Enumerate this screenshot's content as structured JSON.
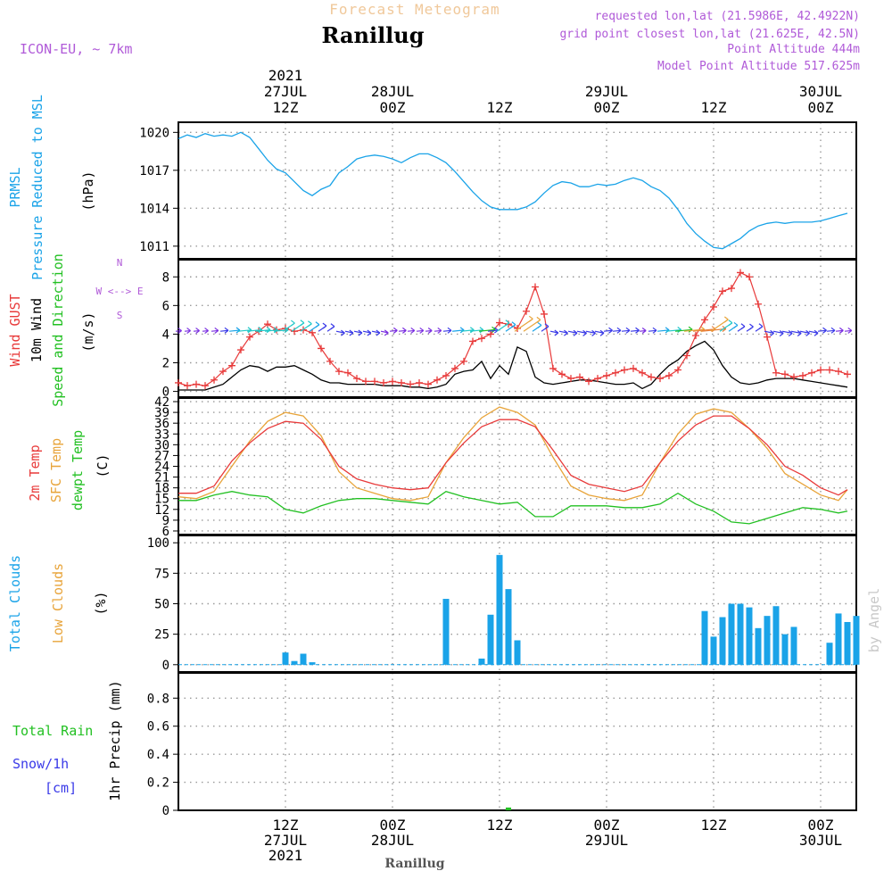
{
  "header": {
    "subtitle": "Forecast Meteogram",
    "location": "Ranillug",
    "model": "ICON-EU, ~ 7km",
    "requested": "requested lon,lat (21.5986E, 42.4922N)",
    "gridpoint": "grid point closest lon,lat (21.625E, 42.5N)",
    "point_alt": "Point Altitude 444m",
    "model_alt": "Model Point Altitude 517.625m",
    "footer_location": "Ranillug",
    "watermark": "by Angel"
  },
  "colors": {
    "pressure": "#1aa3e8",
    "gust": "#e83a3a",
    "wind": "#000000",
    "temp2m": "#e83a3a",
    "sfc": "#e8a43a",
    "dewpt": "#22c022",
    "clouds_total": "#1aa3e8",
    "clouds_low": "#e8a43a",
    "rain": "#22c022",
    "snow": "#3a3ae8",
    "accent_label": "#b05ad8"
  },
  "time_axis": {
    "top": [
      {
        "t": 12,
        "lines": [
          "2021",
          "27JUL",
          "12Z"
        ]
      },
      {
        "t": 24,
        "lines": [
          "28JUL",
          "00Z"
        ]
      },
      {
        "t": 36,
        "lines": [
          "12Z"
        ]
      },
      {
        "t": 48,
        "lines": [
          "29JUL",
          "00Z"
        ]
      },
      {
        "t": 60,
        "lines": [
          "12Z"
        ]
      },
      {
        "t": 72,
        "lines": [
          "30JUL",
          "00Z"
        ]
      }
    ],
    "bottom": [
      {
        "t": 12,
        "lines": [
          "12Z",
          "27JUL",
          "2021"
        ]
      },
      {
        "t": 24,
        "lines": [
          "00Z",
          "28JUL"
        ]
      },
      {
        "t": 36,
        "lines": [
          "12Z"
        ]
      },
      {
        "t": 48,
        "lines": [
          "00Z",
          "29JUL"
        ]
      },
      {
        "t": 60,
        "lines": [
          "12Z"
        ]
      },
      {
        "t": 72,
        "lines": [
          "00Z",
          "30JUL"
        ]
      }
    ]
  },
  "panels_labels": {
    "pressure": [
      "PRMSL",
      "Pressure Reduced to MSL",
      "(hPa)"
    ],
    "wind": [
      "Wind GUST",
      "10m Wind",
      "Speed and Direction",
      "(m/s)"
    ],
    "compass": [
      "N",
      "W <--> E",
      "S"
    ],
    "temp": [
      "2m Temp",
      "SFC Temp",
      "dewpt Temp",
      "(C)"
    ],
    "clouds": [
      "Total Clouds",
      "Low Clouds",
      "(%)"
    ],
    "precip": [
      "Total  Rain",
      "Snow/1h",
      "[cm]",
      "1hr Precip (mm)"
    ]
  },
  "chart_data": [
    {
      "type": "line",
      "panel": "pressure",
      "x_unit": "hours after 27JUL 00Z",
      "ylim": [
        1010,
        1020.8
      ],
      "yticks": [
        "1020",
        "1017",
        "1014",
        "1011"
      ],
      "series": [
        {
          "name": "PRMSL",
          "x": [
            0,
            1,
            2,
            3,
            4,
            5,
            6,
            7,
            8,
            9,
            10,
            11,
            12,
            13,
            14,
            15,
            16,
            17,
            18,
            19,
            20,
            21,
            22,
            23,
            24,
            25,
            26,
            27,
            28,
            29,
            30,
            31,
            32,
            33,
            34,
            35,
            36,
            37,
            38,
            39,
            40,
            41,
            42,
            43,
            44,
            45,
            46,
            47,
            48,
            49,
            50,
            51,
            52,
            53,
            54,
            55,
            56,
            57,
            58,
            59,
            60,
            61,
            62,
            63,
            64,
            65,
            66,
            67,
            68,
            69,
            70,
            71,
            72,
            73,
            74,
            75
          ],
          "y": [
            1019.5,
            1019.8,
            1019.6,
            1019.9,
            1019.7,
            1019.8,
            1019.7,
            1020.0,
            1019.6,
            1018.7,
            1017.8,
            1017.1,
            1016.8,
            1016.1,
            1015.4,
            1015.0,
            1015.5,
            1015.8,
            1016.8,
            1017.3,
            1017.9,
            1018.1,
            1018.2,
            1018.1,
            1017.9,
            1017.6,
            1018.0,
            1018.3,
            1018.3,
            1018.0,
            1017.6,
            1016.9,
            1016.1,
            1015.3,
            1014.6,
            1014.1,
            1013.9,
            1013.9,
            1013.9,
            1014.1,
            1014.5,
            1015.2,
            1015.8,
            1016.1,
            1016.0,
            1015.7,
            1015.7,
            1015.9,
            1015.8,
            1015.9,
            1016.2,
            1016.4,
            1016.2,
            1015.7,
            1015.4,
            1014.8,
            1013.9,
            1012.8,
            1012.0,
            1011.4,
            1010.9,
            1010.8,
            1011.2,
            1011.6,
            1012.2,
            1012.6,
            1012.8,
            1012.9,
            1012.8,
            1012.9,
            1012.9,
            1012.9,
            1013.0,
            1013.2,
            1013.4,
            1013.6
          ]
        }
      ]
    },
    {
      "type": "line",
      "panel": "wind",
      "ylim": [
        -0.4,
        9.2
      ],
      "yticks": [
        "8",
        "6",
        "4",
        "2",
        "0"
      ],
      "series": [
        {
          "name": "Wind GUST",
          "x": [
            0,
            1,
            2,
            3,
            4,
            5,
            6,
            7,
            8,
            9,
            10,
            11,
            12,
            13,
            14,
            15,
            16,
            17,
            18,
            19,
            20,
            21,
            22,
            23,
            24,
            25,
            26,
            27,
            28,
            29,
            30,
            31,
            32,
            33,
            34,
            35,
            36,
            37,
            38,
            39,
            40,
            41,
            42,
            43,
            44,
            45,
            46,
            47,
            48,
            49,
            50,
            51,
            52,
            53,
            54,
            55,
            56,
            57,
            58,
            59,
            60,
            61,
            62,
            63,
            64,
            65,
            66,
            67,
            68,
            69,
            70,
            71,
            72,
            73,
            74,
            75
          ],
          "y": [
            0.6,
            0.4,
            0.5,
            0.4,
            0.8,
            1.4,
            1.8,
            2.9,
            3.8,
            4.2,
            4.7,
            4.3,
            4.4,
            4.2,
            4.3,
            4.1,
            3.0,
            2.1,
            1.4,
            1.3,
            0.9,
            0.7,
            0.7,
            0.6,
            0.7,
            0.6,
            0.5,
            0.6,
            0.5,
            0.8,
            1.1,
            1.6,
            2.1,
            3.5,
            3.7,
            4.0,
            4.8,
            4.7,
            4.4,
            5.6,
            7.3,
            5.4,
            1.6,
            1.2,
            0.9,
            1.0,
            0.7,
            0.9,
            1.1,
            1.3,
            1.5,
            1.6,
            1.3,
            1.0,
            0.9,
            1.1,
            1.5,
            2.5,
            3.9,
            5.0,
            5.9,
            7.0,
            7.2,
            8.3,
            8.0,
            6.1,
            3.8,
            1.3,
            1.2,
            1.0,
            1.1,
            1.3,
            1.5,
            1.5,
            1.4,
            1.2
          ]
        },
        {
          "name": "10m Wind",
          "x": [
            0,
            1,
            2,
            3,
            4,
            5,
            6,
            7,
            8,
            9,
            10,
            11,
            12,
            13,
            14,
            15,
            16,
            17,
            18,
            19,
            20,
            21,
            22,
            23,
            24,
            25,
            26,
            27,
            28,
            29,
            30,
            31,
            32,
            33,
            34,
            35,
            36,
            37,
            38,
            39,
            40,
            41,
            42,
            43,
            44,
            45,
            46,
            47,
            48,
            49,
            50,
            51,
            52,
            53,
            54,
            55,
            56,
            57,
            58,
            59,
            60,
            61,
            62,
            63,
            64,
            65,
            66,
            67,
            68,
            69,
            70,
            71,
            72,
            73,
            74,
            75
          ],
          "y": [
            0.1,
            0.1,
            0.1,
            0.1,
            0.3,
            0.5,
            1.0,
            1.5,
            1.8,
            1.7,
            1.4,
            1.7,
            1.7,
            1.8,
            1.5,
            1.2,
            0.8,
            0.6,
            0.6,
            0.5,
            0.5,
            0.5,
            0.5,
            0.4,
            0.4,
            0.4,
            0.3,
            0.3,
            0.2,
            0.3,
            0.5,
            1.2,
            1.4,
            1.5,
            2.1,
            0.9,
            1.8,
            1.2,
            3.1,
            2.8,
            1.0,
            0.6,
            0.5,
            0.6,
            0.7,
            0.8,
            0.8,
            0.7,
            0.6,
            0.5,
            0.5,
            0.6,
            0.2,
            0.5,
            1.2,
            1.8,
            2.2,
            2.8,
            3.2,
            3.5,
            2.9,
            1.8,
            1.0,
            0.6,
            0.5,
            0.6,
            0.8,
            0.9,
            0.9,
            0.9,
            0.8,
            0.7,
            0.6,
            0.5,
            0.4,
            0.3
          ]
        }
      ]
    },
    {
      "type": "line",
      "panel": "temperature",
      "ylim": [
        5,
        43
      ],
      "yticks": [
        "42",
        "39",
        "36",
        "33",
        "30",
        "27",
        "24",
        "21",
        "18",
        "15",
        "12",
        "9",
        "6"
      ],
      "series": [
        {
          "name": "2m Temp",
          "x": [
            0,
            2,
            4,
            6,
            8,
            10,
            12,
            14,
            16,
            18,
            20,
            22,
            24,
            26,
            28,
            30,
            32,
            34,
            36,
            38,
            40,
            42,
            44,
            46,
            48,
            50,
            52,
            54,
            56,
            58,
            60,
            62,
            64,
            66,
            68,
            70,
            72,
            74,
            75
          ],
          "y": [
            16.5,
            16.5,
            18.5,
            25.5,
            30.5,
            34.5,
            36.5,
            36.0,
            31.5,
            24.0,
            20.5,
            19.0,
            18.0,
            17.5,
            18.0,
            25.0,
            30.5,
            35.0,
            37.0,
            37.0,
            35.0,
            28.5,
            21.5,
            19.0,
            18.0,
            17.0,
            18.5,
            25.0,
            31.0,
            35.5,
            38.0,
            38.0,
            34.5,
            30.0,
            24.0,
            21.5,
            18.0,
            16.0,
            17.5
          ]
        },
        {
          "name": "SFC Temp",
          "x": [
            0,
            2,
            4,
            6,
            8,
            10,
            12,
            14,
            16,
            18,
            20,
            22,
            24,
            26,
            28,
            30,
            32,
            34,
            36,
            38,
            40,
            42,
            44,
            46,
            48,
            50,
            52,
            54,
            56,
            58,
            60,
            62,
            64,
            66,
            68,
            70,
            72,
            74,
            75
          ],
          "y": [
            15.5,
            15.0,
            17.0,
            24.0,
            31.0,
            36.5,
            39.0,
            38.0,
            32.5,
            22.5,
            18.0,
            16.5,
            15.0,
            14.5,
            15.5,
            25.0,
            32.0,
            37.5,
            40.5,
            39.0,
            35.5,
            26.5,
            18.5,
            16.0,
            15.0,
            14.5,
            16.0,
            25.0,
            33.0,
            38.5,
            40.0,
            39.0,
            34.5,
            29.0,
            22.0,
            19.0,
            16.0,
            14.5,
            17.5
          ]
        },
        {
          "name": "dewpt Temp",
          "x": [
            0,
            2,
            4,
            6,
            8,
            10,
            12,
            14,
            16,
            18,
            20,
            22,
            24,
            26,
            28,
            30,
            32,
            34,
            36,
            38,
            40,
            42,
            44,
            46,
            48,
            50,
            52,
            54,
            56,
            58,
            60,
            62,
            64,
            66,
            68,
            70,
            72,
            74,
            75
          ],
          "y": [
            14.5,
            14.5,
            16.0,
            17.0,
            16.0,
            15.5,
            12.0,
            11.0,
            13.0,
            14.5,
            15.0,
            15.0,
            14.5,
            14.0,
            13.5,
            17.0,
            15.5,
            14.5,
            13.5,
            14.0,
            10.0,
            10.0,
            13.0,
            13.0,
            13.0,
            12.5,
            12.5,
            13.5,
            16.5,
            13.5,
            11.5,
            8.5,
            8.0,
            9.5,
            11.0,
            12.5,
            12.0,
            11.0,
            11.5
          ]
        }
      ]
    },
    {
      "type": "bar",
      "panel": "clouds",
      "ylim": [
        -6,
        106
      ],
      "yticks": [
        "100",
        "75",
        "50",
        "25",
        "0"
      ],
      "series": [
        {
          "name": "Total Clouds",
          "x": [
            12,
            13,
            14,
            15,
            30,
            34,
            35,
            36,
            37,
            38,
            59,
            60,
            61,
            62,
            63,
            64,
            65,
            66,
            67,
            68,
            69,
            70,
            73,
            74,
            75,
            76
          ],
          "values": [
            10,
            3,
            9,
            2,
            54,
            5,
            41,
            90,
            62,
            20,
            44,
            23,
            39,
            50,
            50,
            47,
            30,
            40,
            48,
            25,
            31,
            0,
            18,
            42,
            35,
            40
          ]
        }
      ]
    },
    {
      "type": "bar",
      "panel": "precip",
      "ylim": [
        0,
        0.98
      ],
      "yticks": [
        "0.8",
        "0.6",
        "0.4",
        "0.2",
        "0"
      ],
      "series": [
        {
          "name": "Total Rain",
          "x": [
            37
          ],
          "values": [
            0.02
          ]
        }
      ]
    }
  ]
}
